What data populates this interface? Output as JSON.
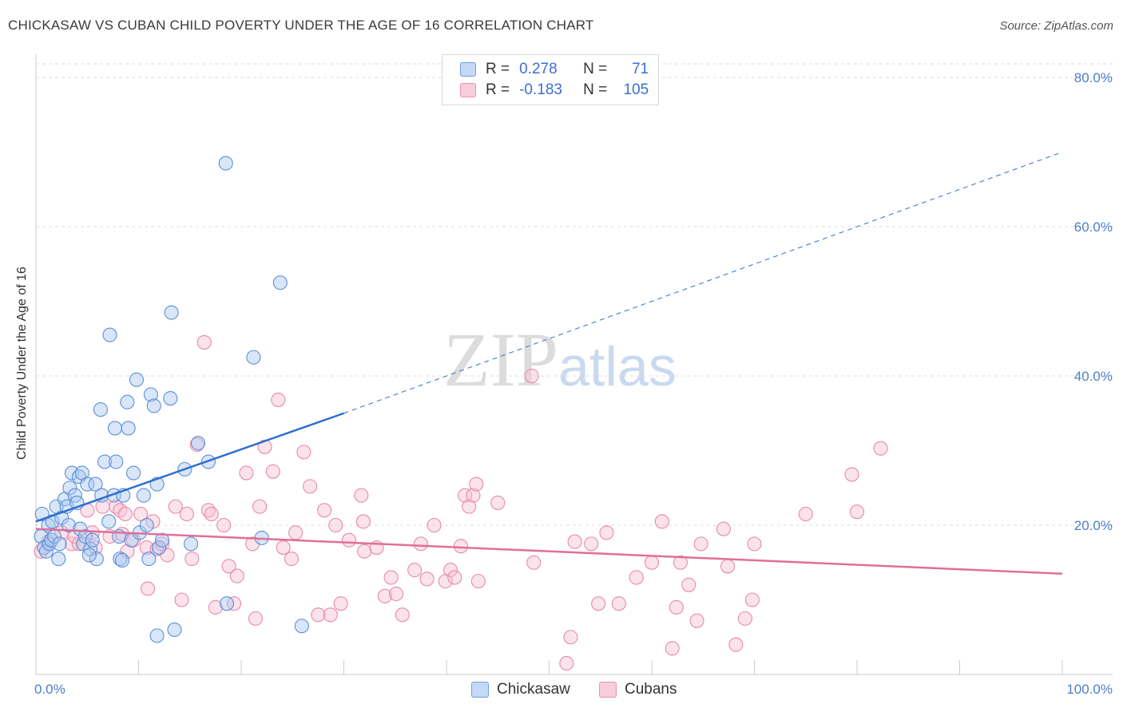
{
  "header": {
    "title": "CHICKASAW VS CUBAN CHILD POVERTY UNDER THE AGE OF 16 CORRELATION CHART",
    "source": "Source: ZipAtlas.com"
  },
  "watermark": {
    "zip": "ZIP",
    "atlas": "atlas"
  },
  "legend": {
    "rows": [
      {
        "r_label": "R =",
        "r_value": "0.278",
        "n_label": "N =",
        "n_value": "71",
        "color": "#6f9fe0"
      },
      {
        "r_label": "R =",
        "r_value": "-0.183",
        "n_label": "N =",
        "n_value": "105",
        "color": "#ee8fae"
      }
    ]
  },
  "bottom_legend": [
    {
      "label": "Chickasaw",
      "color": "#6f9fe0"
    },
    {
      "label": "Cubans",
      "color": "#ee8fae"
    }
  ],
  "colors": {
    "blue_fill": "#aac8f0",
    "blue_stroke": "#5b8fd9",
    "blue_line": "#2e6fd0",
    "pink_fill": "#f6c2d3",
    "pink_stroke": "#e889a8",
    "pink_line": "#e06f97",
    "grid": "#dddddd",
    "tick_text": "#4a7fc9"
  },
  "chart_data": {
    "type": "scatter",
    "title": "CHICKASAW VS CUBAN CHILD POVERTY UNDER THE AGE OF 16 CORRELATION CHART",
    "xlabel": "",
    "ylabel": "Child Poverty Under the Age of 16",
    "xlim": [
      0,
      100
    ],
    "ylim": [
      0,
      85
    ],
    "x_tick_labels": [
      "0.0%",
      "100.0%"
    ],
    "y_ticks": [
      20,
      40,
      60,
      80
    ],
    "y_tick_labels": [
      "20.0%",
      "40.0%",
      "60.0%",
      "80.0%"
    ],
    "grid": true,
    "series": [
      {
        "name": "Chickasaw",
        "r": 0.278,
        "n": 71,
        "trend": {
          "x": [
            0,
            30
          ],
          "y": [
            20.5,
            35.0
          ],
          "dashed_to": [
            100,
            70.0
          ]
        },
        "points": [
          [
            0.5,
            18.5
          ],
          [
            0.6,
            21.5
          ],
          [
            0.8,
            17
          ],
          [
            1,
            16.5
          ],
          [
            1.2,
            20
          ],
          [
            1.3,
            17.5
          ],
          [
            1.5,
            18
          ],
          [
            1.6,
            20.5
          ],
          [
            1.8,
            18.5
          ],
          [
            2,
            22.5
          ],
          [
            2.2,
            15.5
          ],
          [
            2.3,
            17.5
          ],
          [
            2.5,
            21
          ],
          [
            2.8,
            23.5
          ],
          [
            3,
            22.5
          ],
          [
            3.2,
            20
          ],
          [
            3.3,
            25
          ],
          [
            3.5,
            27
          ],
          [
            3.8,
            24
          ],
          [
            4,
            23
          ],
          [
            4.2,
            26.5
          ],
          [
            4.3,
            19.5
          ],
          [
            4.5,
            27
          ],
          [
            4.6,
            17.5
          ],
          [
            4.8,
            18.5
          ],
          [
            5,
            25.5
          ],
          [
            5.3,
            16.8
          ],
          [
            5.5,
            18
          ],
          [
            5.8,
            25.5
          ],
          [
            5.9,
            15.5
          ],
          [
            6.3,
            35.5
          ],
          [
            6.4,
            24
          ],
          [
            6.7,
            28.5
          ],
          [
            7.1,
            20.5
          ],
          [
            7.2,
            45.5
          ],
          [
            7.6,
            24
          ],
          [
            7.7,
            33
          ],
          [
            7.8,
            28.5
          ],
          [
            8.1,
            18.5
          ],
          [
            8.2,
            15.5
          ],
          [
            8.4,
            15.3
          ],
          [
            8.5,
            24
          ],
          [
            8.9,
            36.5
          ],
          [
            9.0,
            33
          ],
          [
            9.3,
            18
          ],
          [
            9.5,
            27
          ],
          [
            9.8,
            39.5
          ],
          [
            10.1,
            19
          ],
          [
            10.5,
            24
          ],
          [
            10.8,
            20
          ],
          [
            11.0,
            15.5
          ],
          [
            11.2,
            37.5
          ],
          [
            11.5,
            36
          ],
          [
            11.8,
            25.5
          ],
          [
            12.0,
            17
          ],
          [
            12.3,
            18
          ],
          [
            13.1,
            37
          ],
          [
            13.2,
            48.5
          ],
          [
            14.5,
            27.5
          ],
          [
            15.1,
            17.5
          ],
          [
            15.8,
            31
          ],
          [
            16.8,
            28.5
          ],
          [
            18.5,
            68.5
          ],
          [
            18.6,
            9.5
          ],
          [
            21.2,
            42.5
          ],
          [
            22.0,
            18.3
          ],
          [
            23.8,
            52.5
          ],
          [
            25.9,
            6.5
          ],
          [
            11.8,
            5.2
          ],
          [
            13.5,
            6.0
          ],
          [
            5.2,
            16.0
          ]
        ]
      },
      {
        "name": "Cubans",
        "r": -0.183,
        "n": 105,
        "trend": {
          "x": [
            0,
            100
          ],
          "y": [
            19.5,
            13.5
          ]
        },
        "points": [
          [
            0.5,
            16.5
          ],
          [
            1.2,
            17.8
          ],
          [
            2.5,
            19
          ],
          [
            3.5,
            17.5
          ],
          [
            3.8,
            18.5
          ],
          [
            4.2,
            17.5
          ],
          [
            5.0,
            22
          ],
          [
            5.5,
            19
          ],
          [
            5.8,
            17
          ],
          [
            6.5,
            22.5
          ],
          [
            7.2,
            18.5
          ],
          [
            7.8,
            22.5
          ],
          [
            8.2,
            22
          ],
          [
            8.4,
            18.8
          ],
          [
            8.7,
            21.5
          ],
          [
            8.9,
            16.5
          ],
          [
            9.5,
            18
          ],
          [
            10.2,
            21.5
          ],
          [
            10.8,
            17
          ],
          [
            10.9,
            11.5
          ],
          [
            11.4,
            20.5
          ],
          [
            11.8,
            16.8
          ],
          [
            12.3,
            17.5
          ],
          [
            12.8,
            16
          ],
          [
            13.6,
            22.5
          ],
          [
            14.2,
            10
          ],
          [
            14.7,
            21.5
          ],
          [
            15.2,
            15.5
          ],
          [
            15.7,
            30.8
          ],
          [
            16.4,
            44.5
          ],
          [
            16.8,
            22
          ],
          [
            17.1,
            21.5
          ],
          [
            17.5,
            9
          ],
          [
            18.3,
            20
          ],
          [
            18.8,
            14.5
          ],
          [
            19.3,
            9.5
          ],
          [
            19.6,
            13.2
          ],
          [
            20.5,
            27
          ],
          [
            21.1,
            17.5
          ],
          [
            21.4,
            7.5
          ],
          [
            21.8,
            22.5
          ],
          [
            22.3,
            30.5
          ],
          [
            23.1,
            27.2
          ],
          [
            23.6,
            36.8
          ],
          [
            24.1,
            17
          ],
          [
            24.9,
            15.5
          ],
          [
            25.3,
            19
          ],
          [
            26.1,
            29.8
          ],
          [
            26.7,
            25.2
          ],
          [
            27.5,
            8
          ],
          [
            28.1,
            22
          ],
          [
            28.7,
            8
          ],
          [
            29.2,
            20
          ],
          [
            29.7,
            9.5
          ],
          [
            30.5,
            18
          ],
          [
            31.7,
            24
          ],
          [
            31.9,
            20.5
          ],
          [
            32.0,
            16.5
          ],
          [
            33.2,
            17
          ],
          [
            34.0,
            10.5
          ],
          [
            34.6,
            13
          ],
          [
            35.1,
            10.8
          ],
          [
            35.7,
            8
          ],
          [
            36.9,
            14
          ],
          [
            38.1,
            12.8
          ],
          [
            38.8,
            20
          ],
          [
            39.9,
            12.5
          ],
          [
            40.4,
            14
          ],
          [
            40.8,
            13
          ],
          [
            41.4,
            17.2
          ],
          [
            41.8,
            24
          ],
          [
            42.2,
            22.5
          ],
          [
            42.6,
            24
          ],
          [
            42.9,
            25.5
          ],
          [
            43.1,
            12.5
          ],
          [
            45.0,
            23
          ],
          [
            48.3,
            40
          ],
          [
            48.5,
            15
          ],
          [
            52.1,
            5
          ],
          [
            51.7,
            1.5
          ],
          [
            54.1,
            17.5
          ],
          [
            54.8,
            9.5
          ],
          [
            55.6,
            19
          ],
          [
            56.8,
            9.5
          ],
          [
            58.5,
            13
          ],
          [
            61.0,
            20.5
          ],
          [
            62.0,
            3.5
          ],
          [
            62.4,
            9
          ],
          [
            62.8,
            15
          ],
          [
            63.6,
            12
          ],
          [
            64.4,
            7.2
          ],
          [
            64.8,
            17.5
          ],
          [
            67.0,
            19.5
          ],
          [
            67.4,
            14.5
          ],
          [
            68.2,
            4
          ],
          [
            69.1,
            7.5
          ],
          [
            69.8,
            10
          ],
          [
            70.0,
            17.5
          ],
          [
            75.0,
            21.5
          ],
          [
            79.5,
            26.8
          ],
          [
            80.0,
            21.8
          ],
          [
            82.3,
            30.3
          ],
          [
            52.5,
            17.8
          ],
          [
            60.0,
            15.0
          ],
          [
            37.5,
            17.5
          ]
        ]
      }
    ]
  }
}
